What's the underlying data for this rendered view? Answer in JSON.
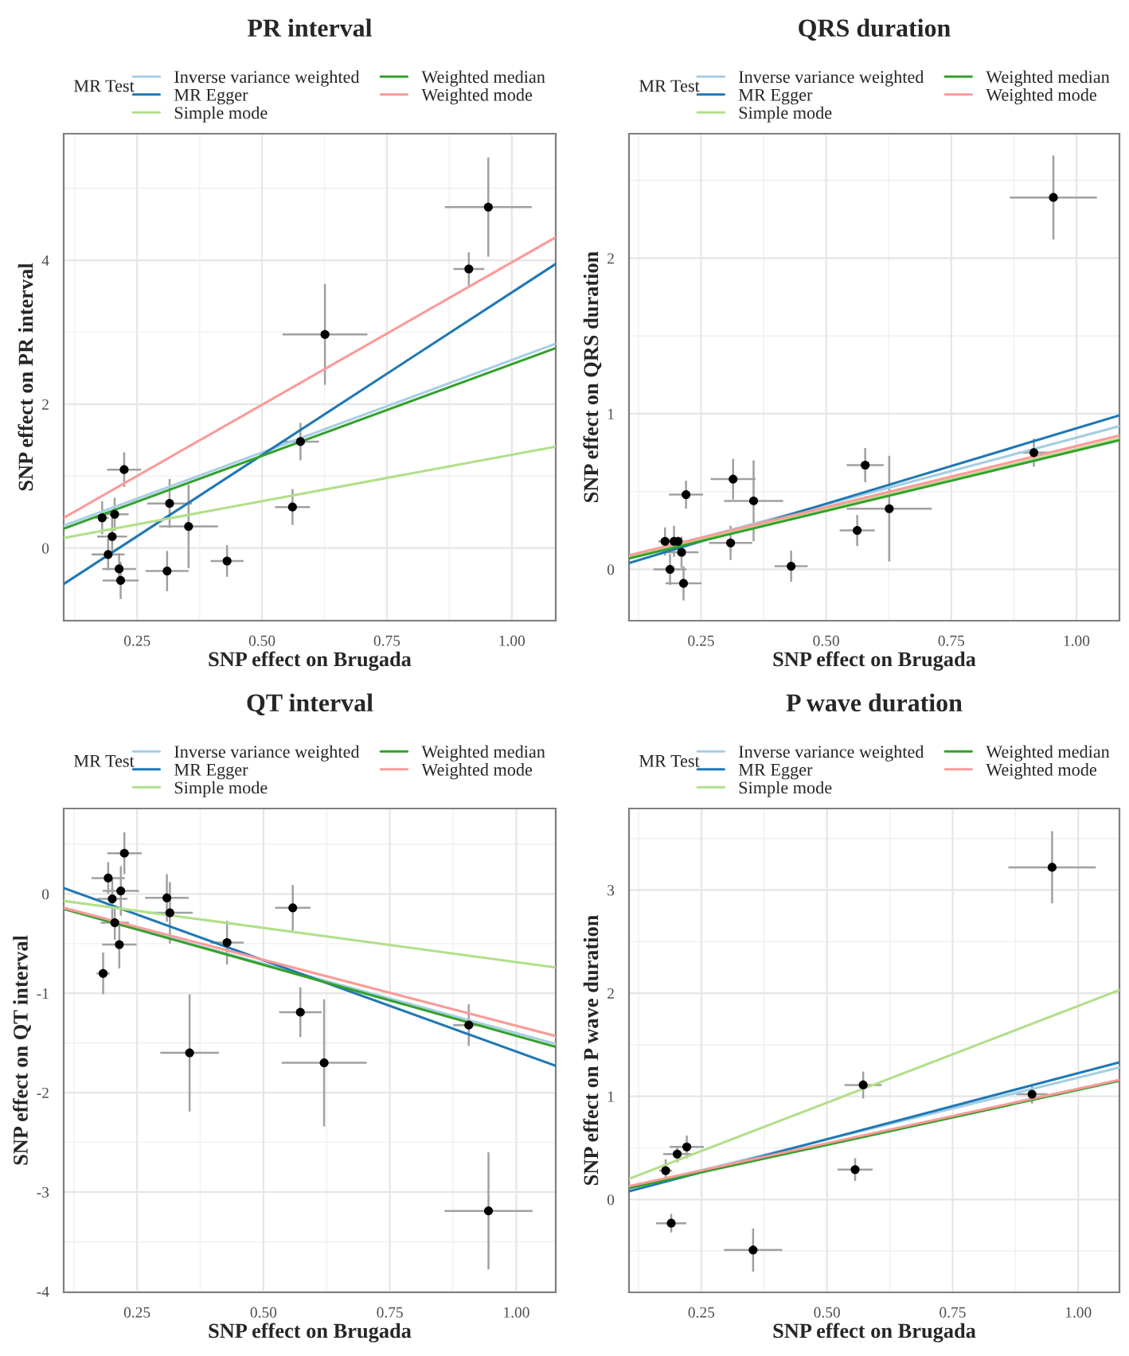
{
  "chart_data": [
    {
      "type": "scatter",
      "title": "PR interval",
      "xlabel": "SNP effect on Brugada",
      "ylabel": "SNP effect on PR interval",
      "legend_title": "MR Test",
      "legend": "top",
      "grid": true,
      "xlim": [
        0.103,
        1.088
      ],
      "ylim": [
        -1.01,
        5.76
      ],
      "xticks": [
        {
          "value": 0.25,
          "label": "0.25"
        },
        {
          "value": 0.5,
          "label": "0.50"
        },
        {
          "value": 0.75,
          "label": "0.75"
        },
        {
          "value": 1.0,
          "label": "1.00"
        }
      ],
      "yticks": [
        0,
        2,
        4
      ],
      "series": [
        {
          "marker": "circle",
          "color": "#000000",
          "x": [
            0.18,
            0.192,
            0.2,
            0.205,
            0.214,
            0.217,
            0.224,
            0.31,
            0.315,
            0.353,
            0.43,
            0.561,
            0.577,
            0.626,
            0.914,
            0.953
          ],
          "values": [
            0.42,
            -0.09,
            0.16,
            0.47,
            -0.29,
            -0.45,
            1.09,
            -0.32,
            0.62,
            0.3,
            -0.18,
            0.57,
            1.48,
            2.97,
            3.88,
            4.74
          ],
          "errors": [
            0.23,
            0.22,
            0.26,
            0.23,
            0.22,
            0.26,
            0.24,
            0.28,
            0.34,
            0.58,
            0.22,
            0.25,
            0.26,
            0.7,
            0.23,
            0.69
          ],
          "xerrors": [
            0.013,
            0.033,
            0.03,
            0.028,
            0.034,
            0.036,
            0.034,
            0.043,
            0.045,
            0.059,
            0.033,
            0.035,
            0.037,
            0.085,
            0.031,
            0.087
          ]
        },
        {
          "type": "line",
          "name": "Inverse variance weighted",
          "color": "#a6cee3",
          "x": [
            0.103,
            1.088
          ],
          "values": [
            0.31,
            2.84
          ]
        },
        {
          "type": "line",
          "name": "MR Egger",
          "color": "#1f78b4",
          "x": [
            0.103,
            1.088
          ],
          "values": [
            -0.5,
            3.95
          ]
        },
        {
          "type": "line",
          "name": "Simple mode",
          "color": "#b2df8a",
          "x": [
            0.103,
            1.088
          ],
          "values": [
            0.14,
            1.41
          ]
        },
        {
          "type": "line",
          "name": "Weighted median",
          "color": "#33a02c",
          "x": [
            0.103,
            1.088
          ],
          "values": [
            0.27,
            2.78
          ]
        },
        {
          "type": "line",
          "name": "Weighted mode",
          "color": "#fb9a99",
          "x": [
            0.103,
            1.088
          ],
          "values": [
            0.42,
            4.32
          ]
        }
      ]
    },
    {
      "type": "scatter",
      "title": "QRS duration",
      "xlabel": "SNP effect on Brugada",
      "ylabel": "SNP effect on QRS duration",
      "legend_title": "MR Test",
      "legend": "top",
      "grid": true,
      "xlim": [
        0.106,
        1.086
      ],
      "ylim": [
        -0.33,
        2.8
      ],
      "xticks": [
        {
          "value": 0.25,
          "label": "0.25"
        },
        {
          "value": 0.5,
          "label": "0.50"
        },
        {
          "value": 0.75,
          "label": "0.75"
        },
        {
          "value": 1.0,
          "label": "1.00"
        }
      ],
      "yticks": [
        0,
        1,
        2
      ],
      "series": [
        {
          "marker": "circle",
          "color": "#000000",
          "x": [
            0.178,
            0.188,
            0.196,
            0.204,
            0.211,
            0.215,
            0.22,
            0.309,
            0.314,
            0.355,
            0.43,
            0.562,
            0.578,
            0.626,
            0.915,
            0.954
          ],
          "values": [
            0.18,
            0.0,
            0.18,
            0.18,
            0.11,
            -0.09,
            0.48,
            0.17,
            0.58,
            0.44,
            0.02,
            0.25,
            0.67,
            0.39,
            0.75,
            2.39
          ],
          "errors": [
            0.09,
            0.1,
            0.1,
            null,
            0.1,
            0.11,
            0.09,
            0.11,
            0.13,
            0.26,
            0.1,
            0.1,
            0.11,
            0.34,
            0.09,
            0.27
          ],
          "xerrors": [
            0.013,
            0.033,
            0.03,
            0.028,
            0.034,
            0.036,
            0.034,
            0.043,
            0.045,
            0.059,
            0.033,
            0.035,
            0.037,
            0.085,
            0.031,
            0.087
          ]
        },
        {
          "type": "line",
          "name": "Inverse variance weighted",
          "color": "#a6cee3",
          "x": [
            0.106,
            1.086
          ],
          "values": [
            0.08,
            0.92
          ]
        },
        {
          "type": "line",
          "name": "MR Egger",
          "color": "#1f78b4",
          "x": [
            0.106,
            1.086
          ],
          "values": [
            0.04,
            0.99
          ]
        },
        {
          "type": "line",
          "name": "Simple mode",
          "color": "#b2df8a",
          "x": [
            0.106,
            1.086
          ],
          "values": [
            0.08,
            0.84
          ]
        },
        {
          "type": "line",
          "name": "Weighted median",
          "color": "#33a02c",
          "x": [
            0.106,
            1.086
          ],
          "values": [
            0.07,
            0.83
          ]
        },
        {
          "type": "line",
          "name": "Weighted mode",
          "color": "#fb9a99",
          "x": [
            0.106,
            1.086
          ],
          "values": [
            0.09,
            0.86
          ]
        }
      ]
    },
    {
      "type": "scatter",
      "title": "QT interval",
      "xlabel": "SNP effect on Brugada",
      "ylabel": "SNP effect on QT interval",
      "legend_title": "MR Test",
      "legend": "top",
      "grid": true,
      "xlim": [
        0.105,
        1.078
      ],
      "ylim": [
        -4.01,
        0.86
      ],
      "xticks": [
        {
          "value": 0.25,
          "label": "0.25"
        },
        {
          "value": 0.5,
          "label": "0.50"
        },
        {
          "value": 0.75,
          "label": "0.75"
        },
        {
          "value": 1.0,
          "label": "1.00"
        }
      ],
      "yticks": [
        -4,
        -3,
        -2,
        -1,
        0
      ],
      "series": [
        {
          "marker": "circle",
          "color": "#000000",
          "x": [
            0.183,
            0.193,
            0.201,
            0.206,
            0.215,
            0.218,
            0.225,
            0.309,
            0.315,
            0.354,
            0.428,
            0.558,
            0.573,
            0.62,
            0.906,
            0.945
          ],
          "values": [
            -0.8,
            0.16,
            -0.05,
            -0.29,
            -0.51,
            0.03,
            0.41,
            -0.04,
            -0.19,
            -1.6,
            -0.49,
            -0.14,
            -1.19,
            -1.7,
            -1.32,
            -3.19
          ],
          "errors": [
            0.21,
            0.16,
            0.21,
            0.17,
            0.24,
            0.25,
            0.21,
            0.24,
            0.31,
            0.59,
            0.22,
            0.23,
            0.25,
            0.64,
            0.21,
            0.59
          ],
          "xerrors": [
            0.013,
            0.033,
            0.03,
            0.028,
            0.034,
            0.036,
            0.034,
            0.043,
            0.045,
            0.058,
            0.033,
            0.035,
            0.042,
            0.084,
            0.031,
            0.087
          ]
        },
        {
          "type": "line",
          "name": "Inverse variance weighted",
          "color": "#a6cee3",
          "x": [
            0.105,
            1.078
          ],
          "values": [
            -0.15,
            -1.51
          ]
        },
        {
          "type": "line",
          "name": "MR Egger",
          "color": "#1f78b4",
          "x": [
            0.105,
            1.078
          ],
          "values": [
            0.06,
            -1.73
          ]
        },
        {
          "type": "line",
          "name": "Simple mode",
          "color": "#b2df8a",
          "x": [
            0.105,
            1.078
          ],
          "values": [
            -0.07,
            -0.74
          ]
        },
        {
          "type": "line",
          "name": "Weighted median",
          "color": "#33a02c",
          "x": [
            0.105,
            1.078
          ],
          "values": [
            -0.15,
            -1.54
          ]
        },
        {
          "type": "line",
          "name": "Weighted mode",
          "color": "#fb9a99",
          "x": [
            0.105,
            1.078
          ],
          "values": [
            -0.14,
            -1.43
          ]
        }
      ]
    },
    {
      "type": "scatter",
      "title": "P wave duration",
      "xlabel": "SNP effect on Brugada",
      "ylabel": "SNP effect on P wave duration",
      "legend_title": "MR Test",
      "legend": "top",
      "grid": true,
      "xlim": [
        0.106,
        1.082
      ],
      "ylim": [
        -0.9,
        3.79
      ],
      "xticks": [
        {
          "value": 0.25,
          "label": "0.25"
        },
        {
          "value": 0.5,
          "label": "0.50"
        },
        {
          "value": 0.75,
          "label": "0.75"
        },
        {
          "value": 1.0,
          "label": "1.00"
        }
      ],
      "yticks": [
        0,
        1,
        2,
        3
      ],
      "series": [
        {
          "marker": "circle",
          "color": "#000000",
          "x": [
            0.179,
            0.19,
            0.202,
            0.221,
            0.353,
            0.556,
            0.572,
            0.908,
            0.948
          ],
          "values": [
            0.28,
            -0.23,
            0.44,
            0.51,
            -0.49,
            0.29,
            1.11,
            1.02,
            3.22
          ],
          "errors": [
            0.11,
            0.09,
            0.08,
            0.11,
            0.21,
            0.11,
            0.13,
            0.09,
            0.35
          ],
          "xerrors": [
            0.013,
            0.03,
            0.028,
            0.034,
            0.058,
            0.035,
            0.037,
            0.031,
            0.087
          ]
        },
        {
          "type": "line",
          "name": "Inverse variance weighted",
          "color": "#a6cee3",
          "x": [
            0.106,
            1.082
          ],
          "values": [
            0.11,
            1.28
          ]
        },
        {
          "type": "line",
          "name": "MR Egger",
          "color": "#1f78b4",
          "x": [
            0.106,
            1.082
          ],
          "values": [
            0.08,
            1.33
          ]
        },
        {
          "type": "line",
          "name": "Simple mode",
          "color": "#b2df8a",
          "x": [
            0.106,
            1.082
          ],
          "values": [
            0.2,
            2.03
          ]
        },
        {
          "type": "line",
          "name": "Weighted median",
          "color": "#33a02c",
          "x": [
            0.106,
            1.082
          ],
          "values": [
            0.11,
            1.15
          ]
        },
        {
          "type": "line",
          "name": "Weighted mode",
          "color": "#fb9a99",
          "x": [
            0.106,
            1.082
          ],
          "values": [
            0.13,
            1.16
          ]
        }
      ]
    }
  ]
}
